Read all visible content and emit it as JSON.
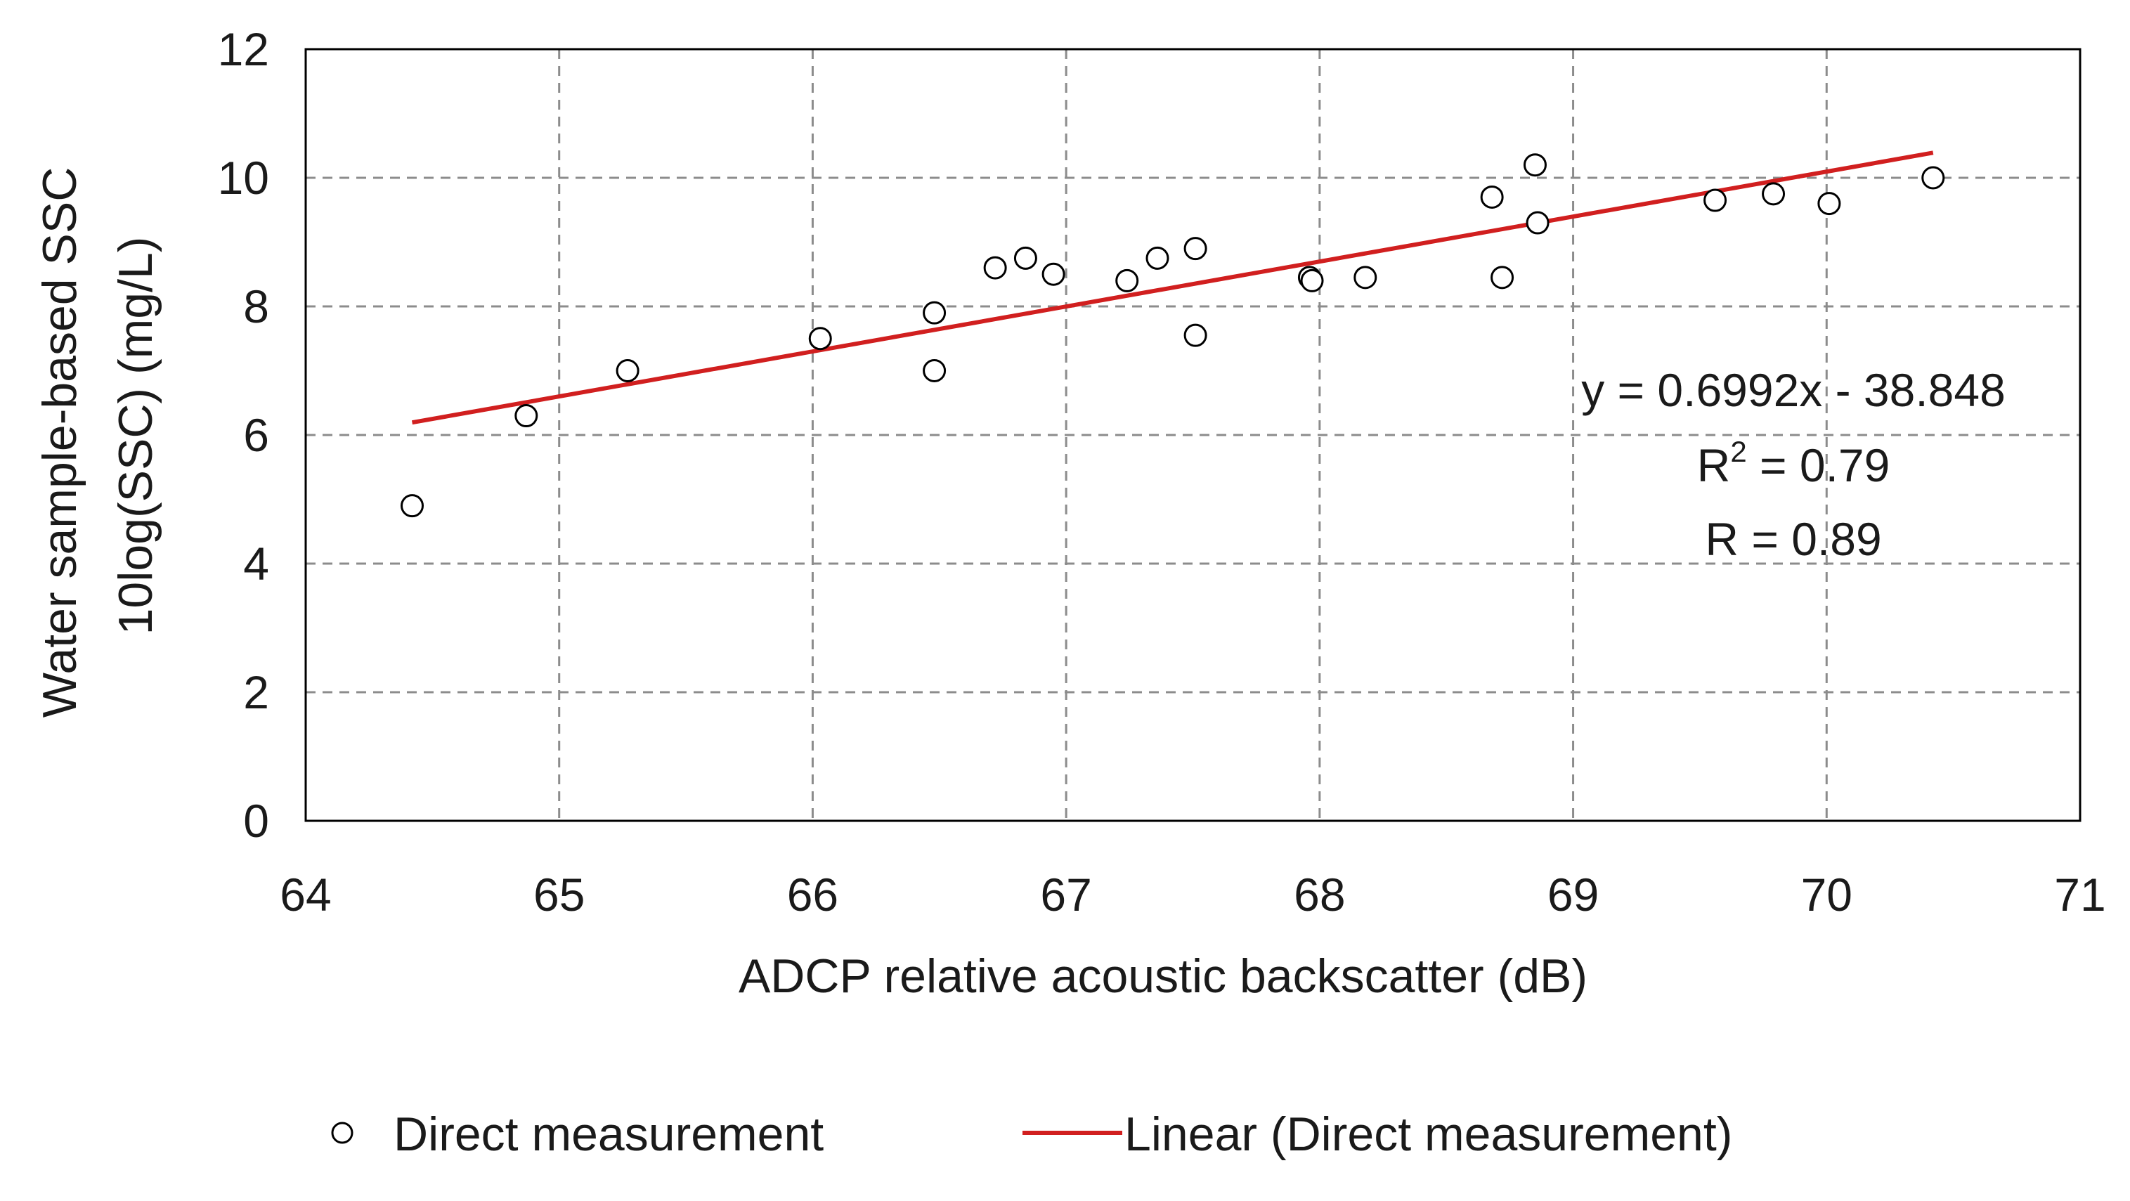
{
  "chart_data": {
    "type": "scatter",
    "title": "",
    "xlabel": "ADCP relative acoustic backscatter (dB)",
    "ylabel_lines": [
      "Water sample-based SSC",
      "10log(SSC) (mg/L)"
    ],
    "xlim": [
      64,
      71
    ],
    "ylim": [
      0,
      12
    ],
    "x_ticks": [
      64,
      65,
      66,
      67,
      68,
      69,
      70,
      71
    ],
    "y_ticks": [
      0,
      2,
      4,
      6,
      8,
      10,
      12
    ],
    "grid": true,
    "legend_position": "bottom",
    "series": [
      {
        "name": "Direct measurement",
        "marker": "open-circle",
        "x": [
          64.42,
          64.87,
          65.27,
          66.03,
          66.48,
          66.48,
          66.72,
          66.84,
          66.95,
          67.24,
          67.36,
          67.51,
          67.51,
          67.96,
          67.97,
          68.18,
          68.68,
          68.72,
          68.85,
          68.86,
          69.56,
          69.79,
          70.01,
          70.42
        ],
        "y": [
          4.9,
          6.3,
          7.0,
          7.5,
          7.0,
          7.9,
          8.6,
          8.75,
          8.5,
          8.4,
          8.75,
          8.9,
          7.55,
          8.45,
          8.4,
          8.45,
          9.7,
          8.45,
          10.2,
          9.3,
          9.65,
          9.75,
          9.6,
          10.0
        ]
      }
    ],
    "trendline": {
      "name": "Linear (Direct measurement)",
      "color": "#d11f1f",
      "slope": 0.6992,
      "intercept": -38.848,
      "x_range": [
        64.42,
        70.42
      ]
    },
    "annotations": {
      "equation": "y = 0.6992x - 38.848",
      "r2_base": "R",
      "r2_sup": "2",
      "r2_rest": " = 0.79",
      "r": "R = 0.89"
    },
    "legend": {
      "marker_label": "Direct measurement",
      "line_label": "Linear (Direct measurement)"
    },
    "colors": {
      "axis": "#000000",
      "grid": "#8c8c8c",
      "marker": "#000000",
      "trend": "#d11f1f"
    }
  }
}
